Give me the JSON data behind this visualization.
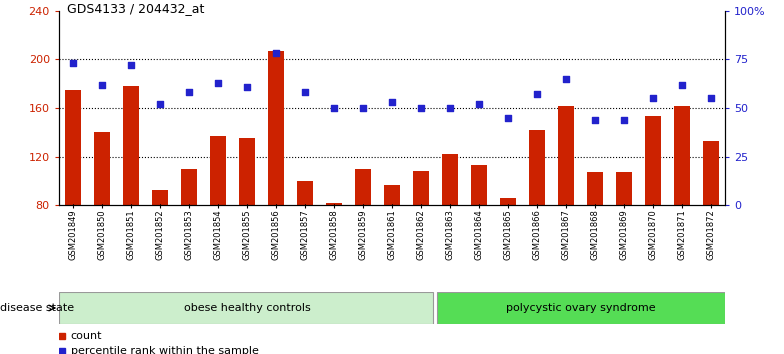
{
  "title": "GDS4133 / 204432_at",
  "samples": [
    "GSM201849",
    "GSM201850",
    "GSM201851",
    "GSM201852",
    "GSM201853",
    "GSM201854",
    "GSM201855",
    "GSM201856",
    "GSM201857",
    "GSM201858",
    "GSM201859",
    "GSM201861",
    "GSM201862",
    "GSM201863",
    "GSM201864",
    "GSM201865",
    "GSM201866",
    "GSM201867",
    "GSM201868",
    "GSM201869",
    "GSM201870",
    "GSM201871",
    "GSM201872"
  ],
  "counts": [
    175,
    140,
    178,
    93,
    110,
    137,
    135,
    207,
    100,
    82,
    110,
    97,
    108,
    122,
    113,
    86,
    142,
    162,
    107,
    107,
    153,
    162,
    133
  ],
  "percentile_rank": [
    73,
    62,
    72,
    52,
    58,
    63,
    61,
    78,
    58,
    50,
    50,
    53,
    50,
    50,
    52,
    45,
    57,
    65,
    44,
    44,
    55,
    62,
    55
  ],
  "ylim_left": [
    80,
    240
  ],
  "ylim_right": [
    0,
    100
  ],
  "yticks_left": [
    80,
    120,
    160,
    200,
    240
  ],
  "yticks_right": [
    0,
    25,
    50,
    75,
    100
  ],
  "ytick_labels_right": [
    "0",
    "25",
    "50",
    "75",
    "100%"
  ],
  "group1_label": "obese healthy controls",
  "group2_label": "polycystic ovary syndrome",
  "group1_count": 13,
  "bar_color": "#cc2200",
  "marker_color": "#2222cc",
  "bg_color": "#ffffff",
  "axis_left_color": "#cc2200",
  "axis_right_color": "#2222cc",
  "group1_bg": "#cceecc",
  "group2_bg": "#55dd55",
  "disease_state_label": "disease state",
  "legend_count_label": "count",
  "legend_pct_label": "percentile rank within the sample",
  "grid_lines": [
    120,
    160,
    200
  ]
}
